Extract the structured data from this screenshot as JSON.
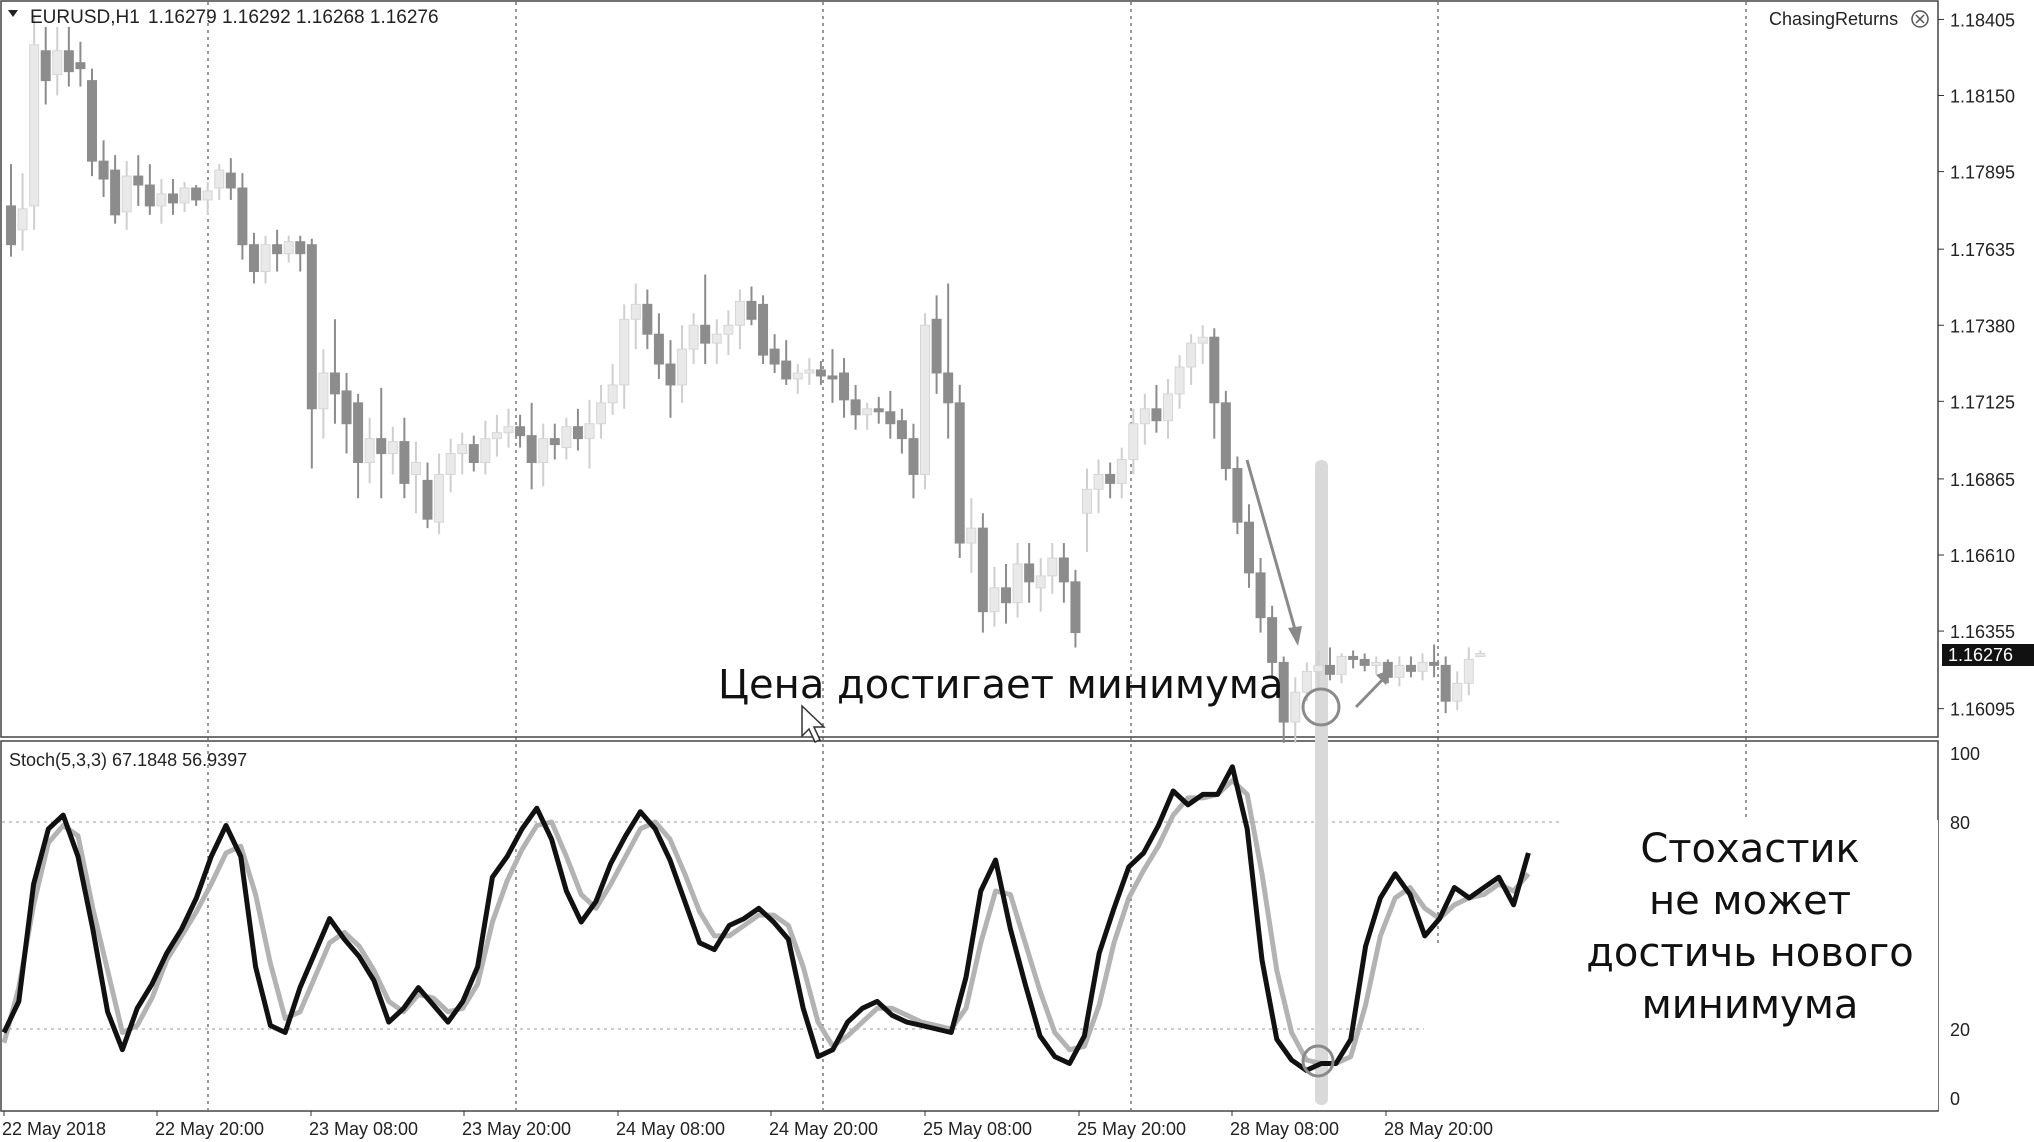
{
  "window": {
    "symbol_info": "EURUSD,H1",
    "ohlc": "1.16279 1.16292 1.16268 1.16276",
    "plugin_label": "ChasingReturns"
  },
  "price_axis": {
    "ticks": [
      "1.18405",
      "1.18150",
      "1.17895",
      "1.17635",
      "1.17380",
      "1.17125",
      "1.16865",
      "1.16610",
      "1.16355",
      "1.16095"
    ],
    "tick_values": [
      1.18405,
      1.1815,
      1.17895,
      1.17635,
      1.1738,
      1.17125,
      1.16865,
      1.1661,
      1.16355,
      1.16095
    ],
    "current_price_label": "1.16276",
    "current_price": 1.16276
  },
  "time_axis": {
    "labels": [
      "22 May 2018",
      "22 May 20:00",
      "23 May 08:00",
      "23 May 20:00",
      "24 May 08:00",
      "24 May 20:00",
      "25 May 08:00",
      "25 May 20:00",
      "28 May 08:00",
      "28 May 20:00"
    ]
  },
  "indicator": {
    "label": "Stoch(5,3,3) 67.1848 56.9397",
    "levels": [
      "100",
      "80",
      "20",
      "0"
    ],
    "level_values": [
      100,
      80,
      20,
      0
    ]
  },
  "annotations": {
    "price_note": "Цена достигает минимума",
    "stoch_note_lines": [
      "Стохастик",
      "не может",
      "достичь нового",
      "минимума"
    ]
  },
  "colors": {
    "bull": "#e9e9e9",
    "bull_edge": "#d6d6d6",
    "bear": "#8c8c8c",
    "stoch_main": "#111111",
    "stoch_signal": "#b3b3b3",
    "highlight": "#d9d9d9",
    "grid": "#555555"
  },
  "chart_data": [
    {
      "type": "candlestick",
      "timeframe": "H1",
      "symbol": "EURUSD",
      "ylim": [
        1.16,
        1.1845
      ],
      "candles": [
        {
          "o": 1.1778,
          "h": 1.1792,
          "l": 1.1761,
          "c": 1.1765
        },
        {
          "o": 1.177,
          "h": 1.1789,
          "l": 1.1763,
          "c": 1.1777
        },
        {
          "o": 1.1778,
          "h": 1.1842,
          "l": 1.177,
          "c": 1.1832
        },
        {
          "o": 1.183,
          "h": 1.1838,
          "l": 1.1812,
          "c": 1.182
        },
        {
          "o": 1.1822,
          "h": 1.1838,
          "l": 1.1815,
          "c": 1.183
        },
        {
          "o": 1.183,
          "h": 1.1838,
          "l": 1.1818,
          "c": 1.1823
        },
        {
          "o": 1.1826,
          "h": 1.1833,
          "l": 1.1818,
          "c": 1.1824
        },
        {
          "o": 1.182,
          "h": 1.1824,
          "l": 1.1788,
          "c": 1.1793
        },
        {
          "o": 1.1793,
          "h": 1.18,
          "l": 1.1781,
          "c": 1.1787
        },
        {
          "o": 1.179,
          "h": 1.1795,
          "l": 1.1772,
          "c": 1.1775
        },
        {
          "o": 1.1776,
          "h": 1.1793,
          "l": 1.177,
          "c": 1.1788
        },
        {
          "o": 1.1788,
          "h": 1.1795,
          "l": 1.1778,
          "c": 1.1785
        },
        {
          "o": 1.1785,
          "h": 1.1792,
          "l": 1.1775,
          "c": 1.1778
        },
        {
          "o": 1.1778,
          "h": 1.1787,
          "l": 1.1772,
          "c": 1.1782
        },
        {
          "o": 1.1782,
          "h": 1.1787,
          "l": 1.1775,
          "c": 1.1779
        },
        {
          "o": 1.1779,
          "h": 1.1786,
          "l": 1.1776,
          "c": 1.1784
        },
        {
          "o": 1.1784,
          "h": 1.1785,
          "l": 1.1778,
          "c": 1.178
        },
        {
          "o": 1.178,
          "h": 1.1786,
          "l": 1.1775,
          "c": 1.1783
        },
        {
          "o": 1.1784,
          "h": 1.1792,
          "l": 1.178,
          "c": 1.179
        },
        {
          "o": 1.1789,
          "h": 1.1794,
          "l": 1.178,
          "c": 1.1784
        },
        {
          "o": 1.1784,
          "h": 1.1789,
          "l": 1.176,
          "c": 1.1765
        },
        {
          "o": 1.1765,
          "h": 1.1769,
          "l": 1.1752,
          "c": 1.1756
        },
        {
          "o": 1.1756,
          "h": 1.1768,
          "l": 1.1752,
          "c": 1.1765
        },
        {
          "o": 1.1765,
          "h": 1.177,
          "l": 1.1756,
          "c": 1.1762
        },
        {
          "o": 1.1762,
          "h": 1.1768,
          "l": 1.1759,
          "c": 1.1766
        },
        {
          "o": 1.1766,
          "h": 1.1768,
          "l": 1.1756,
          "c": 1.1762
        },
        {
          "o": 1.1765,
          "h": 1.1767,
          "l": 1.169,
          "c": 1.171
        },
        {
          "o": 1.171,
          "h": 1.173,
          "l": 1.17,
          "c": 1.1722
        },
        {
          "o": 1.1722,
          "h": 1.174,
          "l": 1.1705,
          "c": 1.1715
        },
        {
          "o": 1.1716,
          "h": 1.1722,
          "l": 1.1695,
          "c": 1.1705
        },
        {
          "o": 1.1712,
          "h": 1.1715,
          "l": 1.168,
          "c": 1.1692
        },
        {
          "o": 1.1692,
          "h": 1.1707,
          "l": 1.1685,
          "c": 1.17
        },
        {
          "o": 1.17,
          "h": 1.1717,
          "l": 1.168,
          "c": 1.1695
        },
        {
          "o": 1.1695,
          "h": 1.1704,
          "l": 1.1688,
          "c": 1.1699
        },
        {
          "o": 1.1699,
          "h": 1.1707,
          "l": 1.168,
          "c": 1.1685
        },
        {
          "o": 1.1688,
          "h": 1.1699,
          "l": 1.1675,
          "c": 1.1692
        },
        {
          "o": 1.1686,
          "h": 1.1692,
          "l": 1.167,
          "c": 1.1673
        },
        {
          "o": 1.1672,
          "h": 1.1695,
          "l": 1.1668,
          "c": 1.1688
        },
        {
          "o": 1.1688,
          "h": 1.17,
          "l": 1.1682,
          "c": 1.1695
        },
        {
          "o": 1.1695,
          "h": 1.1702,
          "l": 1.1688,
          "c": 1.1698
        },
        {
          "o": 1.1698,
          "h": 1.1701,
          "l": 1.1689,
          "c": 1.1692
        },
        {
          "o": 1.1692,
          "h": 1.1706,
          "l": 1.1688,
          "c": 1.17
        },
        {
          "o": 1.17,
          "h": 1.1708,
          "l": 1.1694,
          "c": 1.1702
        },
        {
          "o": 1.1702,
          "h": 1.171,
          "l": 1.1697,
          "c": 1.1704
        },
        {
          "o": 1.1704,
          "h": 1.1708,
          "l": 1.1697,
          "c": 1.1701
        },
        {
          "o": 1.1701,
          "h": 1.1712,
          "l": 1.1683,
          "c": 1.1692
        },
        {
          "o": 1.1692,
          "h": 1.1705,
          "l": 1.1684,
          "c": 1.17
        },
        {
          "o": 1.17,
          "h": 1.1705,
          "l": 1.1693,
          "c": 1.1698
        },
        {
          "o": 1.1697,
          "h": 1.1707,
          "l": 1.1693,
          "c": 1.1704
        },
        {
          "o": 1.1704,
          "h": 1.171,
          "l": 1.1696,
          "c": 1.17
        },
        {
          "o": 1.17,
          "h": 1.1713,
          "l": 1.169,
          "c": 1.1705
        },
        {
          "o": 1.1705,
          "h": 1.1718,
          "l": 1.17,
          "c": 1.1712
        },
        {
          "o": 1.1712,
          "h": 1.1725,
          "l": 1.1708,
          "c": 1.1718
        },
        {
          "o": 1.1718,
          "h": 1.1745,
          "l": 1.171,
          "c": 1.174
        },
        {
          "o": 1.174,
          "h": 1.1752,
          "l": 1.173,
          "c": 1.1745
        },
        {
          "o": 1.1745,
          "h": 1.175,
          "l": 1.173,
          "c": 1.1735
        },
        {
          "o": 1.1735,
          "h": 1.1742,
          "l": 1.172,
          "c": 1.1725
        },
        {
          "o": 1.1725,
          "h": 1.1733,
          "l": 1.1707,
          "c": 1.1718
        },
        {
          "o": 1.1718,
          "h": 1.1738,
          "l": 1.1712,
          "c": 1.173
        },
        {
          "o": 1.173,
          "h": 1.1742,
          "l": 1.1725,
          "c": 1.1738
        },
        {
          "o": 1.1738,
          "h": 1.1755,
          "l": 1.1725,
          "c": 1.1732
        },
        {
          "o": 1.1732,
          "h": 1.174,
          "l": 1.1725,
          "c": 1.1735
        },
        {
          "o": 1.1735,
          "h": 1.1743,
          "l": 1.1728,
          "c": 1.1738
        },
        {
          "o": 1.1738,
          "h": 1.175,
          "l": 1.173,
          "c": 1.1746
        },
        {
          "o": 1.1746,
          "h": 1.1751,
          "l": 1.1738,
          "c": 1.174
        },
        {
          "o": 1.1745,
          "h": 1.1748,
          "l": 1.1725,
          "c": 1.1728
        },
        {
          "o": 1.173,
          "h": 1.1735,
          "l": 1.1722,
          "c": 1.1725
        },
        {
          "o": 1.1726,
          "h": 1.1733,
          "l": 1.1718,
          "c": 1.172
        },
        {
          "o": 1.172,
          "h": 1.1725,
          "l": 1.1715,
          "c": 1.1722
        },
        {
          "o": 1.1722,
          "h": 1.1727,
          "l": 1.1718,
          "c": 1.1723
        },
        {
          "o": 1.1723,
          "h": 1.1726,
          "l": 1.1718,
          "c": 1.1721
        },
        {
          "o": 1.1721,
          "h": 1.173,
          "l": 1.1712,
          "c": 1.172
        },
        {
          "o": 1.1722,
          "h": 1.1727,
          "l": 1.1707,
          "c": 1.1713
        },
        {
          "o": 1.1713,
          "h": 1.1718,
          "l": 1.1703,
          "c": 1.1708
        },
        {
          "o": 1.1708,
          "h": 1.1712,
          "l": 1.1703,
          "c": 1.171
        },
        {
          "o": 1.171,
          "h": 1.1714,
          "l": 1.1705,
          "c": 1.1709
        },
        {
          "o": 1.1709,
          "h": 1.1716,
          "l": 1.17,
          "c": 1.1705
        },
        {
          "o": 1.1706,
          "h": 1.171,
          "l": 1.1695,
          "c": 1.17
        },
        {
          "o": 1.17,
          "h": 1.1705,
          "l": 1.168,
          "c": 1.1688
        },
        {
          "o": 1.1688,
          "h": 1.1742,
          "l": 1.1683,
          "c": 1.1738
        },
        {
          "o": 1.174,
          "h": 1.1748,
          "l": 1.1715,
          "c": 1.1722
        },
        {
          "o": 1.1722,
          "h": 1.1752,
          "l": 1.17,
          "c": 1.1712
        },
        {
          "o": 1.1712,
          "h": 1.1718,
          "l": 1.166,
          "c": 1.1665
        },
        {
          "o": 1.1665,
          "h": 1.168,
          "l": 1.1655,
          "c": 1.167
        },
        {
          "o": 1.167,
          "h": 1.1675,
          "l": 1.1635,
          "c": 1.1642
        },
        {
          "o": 1.1642,
          "h": 1.1657,
          "l": 1.1637,
          "c": 1.165
        },
        {
          "o": 1.165,
          "h": 1.1658,
          "l": 1.1638,
          "c": 1.1645
        },
        {
          "o": 1.1645,
          "h": 1.1665,
          "l": 1.164,
          "c": 1.1658
        },
        {
          "o": 1.1658,
          "h": 1.1665,
          "l": 1.1645,
          "c": 1.1652
        },
        {
          "o": 1.165,
          "h": 1.166,
          "l": 1.1642,
          "c": 1.1654
        },
        {
          "o": 1.1654,
          "h": 1.1665,
          "l": 1.1648,
          "c": 1.166
        },
        {
          "o": 1.166,
          "h": 1.1665,
          "l": 1.1645,
          "c": 1.1652
        },
        {
          "o": 1.1652,
          "h": 1.1656,
          "l": 1.163,
          "c": 1.1635
        },
        {
          "o": 1.1675,
          "h": 1.169,
          "l": 1.1662,
          "c": 1.1683
        },
        {
          "o": 1.1683,
          "h": 1.1693,
          "l": 1.1675,
          "c": 1.1688
        },
        {
          "o": 1.1688,
          "h": 1.1692,
          "l": 1.168,
          "c": 1.1685
        },
        {
          "o": 1.1685,
          "h": 1.1697,
          "l": 1.168,
          "c": 1.1693
        },
        {
          "o": 1.1693,
          "h": 1.171,
          "l": 1.1688,
          "c": 1.1705
        },
        {
          "o": 1.1705,
          "h": 1.1715,
          "l": 1.1698,
          "c": 1.171
        },
        {
          "o": 1.171,
          "h": 1.1718,
          "l": 1.1702,
          "c": 1.1706
        },
        {
          "o": 1.1706,
          "h": 1.172,
          "l": 1.17,
          "c": 1.1715
        },
        {
          "o": 1.1715,
          "h": 1.1728,
          "l": 1.171,
          "c": 1.1724
        },
        {
          "o": 1.1724,
          "h": 1.1735,
          "l": 1.1718,
          "c": 1.1732
        },
        {
          "o": 1.1732,
          "h": 1.1738,
          "l": 1.1725,
          "c": 1.1734
        },
        {
          "o": 1.1734,
          "h": 1.1737,
          "l": 1.17,
          "c": 1.1712
        },
        {
          "o": 1.1712,
          "h": 1.1716,
          "l": 1.1686,
          "c": 1.169
        },
        {
          "o": 1.169,
          "h": 1.1694,
          "l": 1.1668,
          "c": 1.1672
        },
        {
          "o": 1.1672,
          "h": 1.1678,
          "l": 1.165,
          "c": 1.1655
        },
        {
          "o": 1.1655,
          "h": 1.166,
          "l": 1.1635,
          "c": 1.164
        },
        {
          "o": 1.164,
          "h": 1.1644,
          "l": 1.162,
          "c": 1.1625
        },
        {
          "o": 1.1625,
          "h": 1.1627,
          "l": 1.1598,
          "c": 1.1605
        },
        {
          "o": 1.1605,
          "h": 1.162,
          "l": 1.1598,
          "c": 1.1615
        },
        {
          "o": 1.1615,
          "h": 1.1625,
          "l": 1.1612,
          "c": 1.1622
        },
        {
          "o": 1.1622,
          "h": 1.1629,
          "l": 1.1616,
          "c": 1.1624
        },
        {
          "o": 1.1624,
          "h": 1.163,
          "l": 1.1619,
          "c": 1.1621
        },
        {
          "o": 1.1621,
          "h": 1.1628,
          "l": 1.1618,
          "c": 1.1627
        },
        {
          "o": 1.1627,
          "h": 1.1629,
          "l": 1.1623,
          "c": 1.1626
        },
        {
          "o": 1.1626,
          "h": 1.1628,
          "l": 1.1622,
          "c": 1.1624
        },
        {
          "o": 1.1624,
          "h": 1.1627,
          "l": 1.1621,
          "c": 1.1625
        },
        {
          "o": 1.1625,
          "h": 1.1626,
          "l": 1.1618,
          "c": 1.162
        },
        {
          "o": 1.162,
          "h": 1.1627,
          "l": 1.1617,
          "c": 1.1624
        },
        {
          "o": 1.1624,
          "h": 1.1627,
          "l": 1.162,
          "c": 1.1622
        },
        {
          "o": 1.1622,
          "h": 1.1628,
          "l": 1.1619,
          "c": 1.1625
        },
        {
          "o": 1.1625,
          "h": 1.1631,
          "l": 1.162,
          "c": 1.1624
        },
        {
          "o": 1.1624,
          "h": 1.1627,
          "l": 1.1608,
          "c": 1.1612
        },
        {
          "o": 1.1612,
          "h": 1.1622,
          "l": 1.1609,
          "c": 1.1618
        },
        {
          "o": 1.1618,
          "h": 1.163,
          "l": 1.1614,
          "c": 1.1626
        },
        {
          "o": 1.1627,
          "h": 1.1629,
          "l": 1.1627,
          "c": 1.1628
        }
      ]
    },
    {
      "type": "line",
      "title": "Stoch(5,3,3) 67.1848 56.9397",
      "ylim": [
        0,
        100
      ],
      "levels": [
        80,
        20
      ],
      "series": [
        {
          "name": "main",
          "values": [
            19,
            28,
            62,
            78,
            82,
            70,
            49,
            25,
            14,
            26,
            33,
            42,
            49,
            58,
            70,
            79,
            70,
            38,
            21,
            19,
            32,
            42,
            52,
            46,
            41,
            34,
            22,
            26,
            32,
            27,
            22,
            28,
            38,
            64,
            70,
            78,
            84,
            75,
            60,
            51,
            57,
            68,
            76,
            83,
            78,
            69,
            57,
            45,
            43,
            50,
            52,
            55,
            51,
            46,
            26,
            12,
            14,
            22,
            26,
            28,
            24,
            22,
            21,
            20,
            19,
            35,
            60,
            69,
            49,
            33,
            18,
            12,
            10,
            18,
            42,
            55,
            67,
            71,
            79,
            89,
            85,
            88,
            88,
            96,
            78,
            40,
            17,
            11,
            8,
            10,
            10,
            17,
            44,
            58,
            65,
            59,
            47,
            52,
            61,
            58,
            61,
            64,
            56,
            71
          ]
        },
        {
          "name": "signal",
          "values": [
            16,
            32,
            56,
            74,
            79,
            76,
            55,
            37,
            19,
            21,
            29,
            40,
            47,
            54,
            62,
            71,
            73,
            59,
            39,
            23,
            25,
            35,
            45,
            48,
            44,
            37,
            28,
            25,
            30,
            29,
            25,
            26,
            33,
            51,
            63,
            72,
            79,
            80,
            70,
            59,
            55,
            62,
            70,
            78,
            80,
            75,
            65,
            54,
            47,
            47,
            50,
            53,
            53,
            50,
            38,
            22,
            15,
            18,
            22,
            26,
            26,
            24,
            22,
            21,
            20,
            26,
            45,
            60,
            59,
            45,
            31,
            19,
            14,
            15,
            27,
            45,
            58,
            66,
            73,
            82,
            87,
            87,
            88,
            92,
            88,
            65,
            37,
            19,
            11,
            10,
            10,
            12,
            27,
            47,
            58,
            61,
            55,
            52,
            56,
            58,
            59,
            62,
            60,
            65
          ]
        }
      ]
    }
  ]
}
